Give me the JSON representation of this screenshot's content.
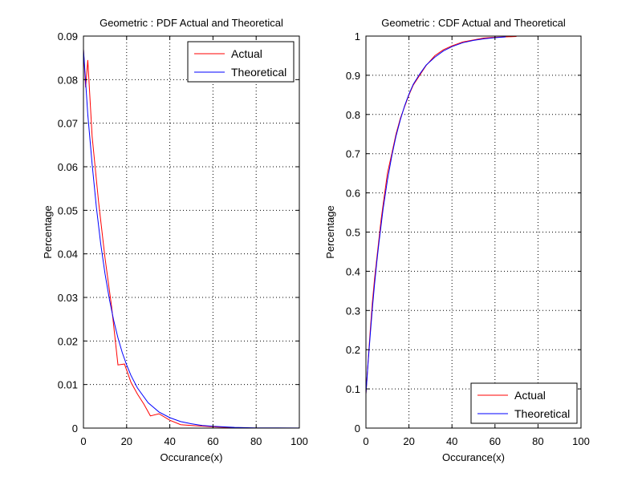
{
  "chart_data": [
    {
      "type": "line",
      "title": "Geometric : PDF Actual and Theoretical",
      "xlabel": "Occurance(x)",
      "ylabel": "Percentage",
      "xlim": [
        0,
        100
      ],
      "ylim": [
        0,
        0.09
      ],
      "xticks": [
        0,
        20,
        40,
        60,
        80,
        100
      ],
      "xtick_labels": [
        "0",
        "20",
        "40",
        "60",
        "80",
        "100"
      ],
      "yticks": [
        0,
        0.01,
        0.02,
        0.03,
        0.04,
        0.05,
        0.06,
        0.07,
        0.08,
        0.09
      ],
      "ytick_labels": [
        "0",
        "0.01",
        "0.02",
        "0.03",
        "0.04",
        "0.05",
        "0.06",
        "0.07",
        "0.08",
        "0.09"
      ],
      "grid": true,
      "legend_position": "top-right",
      "series": [
        {
          "name": "Actual",
          "color": "#ff0000",
          "x": [
            0,
            1,
            2,
            4,
            7,
            10,
            13,
            16,
            19,
            22,
            25,
            28,
            31,
            35,
            40,
            45,
            50,
            60,
            70
          ],
          "y": [
            0.087,
            0.0782,
            0.0845,
            0.067,
            0.052,
            0.039,
            0.028,
            0.0145,
            0.0147,
            0.0105,
            0.0078,
            0.0055,
            0.0028,
            0.0033,
            0.0018,
            0.0008,
            0.0006,
            0.0003,
            0.0001
          ]
        },
        {
          "name": "Theoretical",
          "color": "#0000ff",
          "x": [
            0,
            2,
            4,
            6,
            8,
            10,
            12,
            14,
            16,
            18,
            20,
            22,
            25,
            30,
            35,
            40,
            45,
            50,
            55,
            60,
            70,
            80,
            90,
            100
          ],
          "y": [
            0.087,
            0.072,
            0.0606,
            0.0507,
            0.0423,
            0.0354,
            0.0296,
            0.0247,
            0.0207,
            0.0173,
            0.0145,
            0.0121,
            0.0092,
            0.0058,
            0.0037,
            0.0024,
            0.0015,
            0.001,
            0.0006,
            0.0004,
            0.00016,
            6e-05,
            3e-05,
            1e-05
          ]
        }
      ]
    },
    {
      "type": "line",
      "title": "Geometric : CDF Actual and Theoretical",
      "xlabel": "Occurance(x)",
      "ylabel": "Percentage",
      "xlim": [
        0,
        100
      ],
      "ylim": [
        0,
        1
      ],
      "xticks": [
        0,
        20,
        40,
        60,
        80,
        100
      ],
      "xtick_labels": [
        "0",
        "20",
        "40",
        "60",
        "80",
        "100"
      ],
      "yticks": [
        0,
        0.1,
        0.2,
        0.3,
        0.4,
        0.5,
        0.6,
        0.7,
        0.8,
        0.9,
        1
      ],
      "ytick_labels": [
        "0",
        "0.1",
        "0.2",
        "0.3",
        "0.4",
        "0.5",
        "0.6",
        "0.7",
        "0.8",
        "0.9",
        "1"
      ],
      "grid": true,
      "legend_position": "bottom-right",
      "series": [
        {
          "name": "Actual",
          "color": "#ff0000",
          "x": [
            0,
            1,
            2,
            3,
            4,
            5,
            6,
            7,
            8,
            9,
            10,
            12,
            14,
            16,
            18,
            20,
            22,
            25,
            28,
            32,
            36,
            40,
            45,
            50,
            55,
            60,
            65,
            70
          ],
          "y": [
            0.087,
            0.17,
            0.25,
            0.32,
            0.38,
            0.43,
            0.48,
            0.53,
            0.57,
            0.61,
            0.65,
            0.7,
            0.75,
            0.79,
            0.82,
            0.85,
            0.875,
            0.9,
            0.925,
            0.95,
            0.965,
            0.975,
            0.985,
            0.99,
            0.995,
            0.997,
            0.998,
            0.999
          ]
        },
        {
          "name": "Theoretical",
          "color": "#0000ff",
          "x": [
            0,
            1,
            2,
            3,
            4,
            5,
            6,
            8,
            10,
            12,
            14,
            16,
            18,
            20,
            22,
            25,
            28,
            32,
            36,
            40,
            45,
            50,
            55,
            60,
            65
          ],
          "y": [
            0.087,
            0.167,
            0.239,
            0.305,
            0.366,
            0.421,
            0.471,
            0.559,
            0.633,
            0.694,
            0.745,
            0.787,
            0.822,
            0.852,
            0.877,
            0.903,
            0.926,
            0.946,
            0.962,
            0.973,
            0.983,
            0.989,
            0.993,
            0.996,
            0.998
          ]
        }
      ]
    }
  ]
}
